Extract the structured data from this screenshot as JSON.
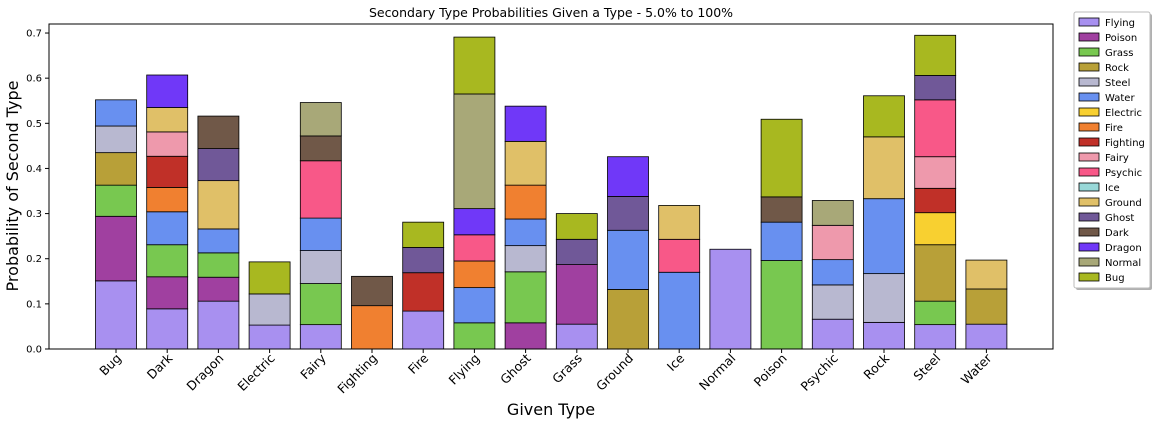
{
  "chart_data": {
    "type": "bar",
    "stacked": true,
    "title": "Secondary Type Probabilities Given a Type - 5.0% to 100%",
    "xlabel": "Given Type",
    "ylabel": "Probability of Second Type",
    "ylim": [
      0,
      0.72
    ],
    "yticks": [
      "0.0",
      "0.1",
      "0.2",
      "0.3",
      "0.4",
      "0.5",
      "0.6",
      "0.7"
    ],
    "legend_position": "outside-right-top",
    "grid": false,
    "categories": [
      "Bug",
      "Dark",
      "Dragon",
      "Electric",
      "Fairy",
      "Fighting",
      "Fire",
      "Flying",
      "Ghost",
      "Grass",
      "Ground",
      "Ice",
      "Normal",
      "Poison",
      "Psychic",
      "Rock",
      "Steel",
      "Water"
    ],
    "series": [
      {
        "name": "Flying",
        "color": "#a890f0",
        "values": [
          0.151,
          0.089,
          0.106,
          0.053,
          0.054,
          0,
          0.084,
          0,
          0,
          0.055,
          0,
          0,
          0.221,
          0,
          0.066,
          0.059,
          0.054,
          0.055
        ]
      },
      {
        "name": "Poison",
        "color": "#a040a0",
        "values": [
          0.143,
          0.071,
          0.053,
          0,
          0,
          0,
          0,
          0,
          0.058,
          0.132,
          0,
          0,
          0,
          0,
          0,
          0,
          0,
          0
        ]
      },
      {
        "name": "Grass",
        "color": "#78c850",
        "values": [
          0.069,
          0.071,
          0.054,
          0,
          0.091,
          0,
          0,
          0.058,
          0.113,
          0,
          0,
          0,
          0,
          0.196,
          0,
          0,
          0.052,
          0
        ]
      },
      {
        "name": "Rock",
        "color": "#b8a038",
        "values": [
          0.072,
          0,
          0,
          0,
          0,
          0,
          0,
          0,
          0,
          0,
          0.132,
          0,
          0,
          0,
          0,
          0,
          0.125,
          0.078
        ]
      },
      {
        "name": "Steel",
        "color": "#b8b8d0",
        "values": [
          0.059,
          0,
          0,
          0.069,
          0.073,
          0,
          0,
          0,
          0.058,
          0,
          0,
          0,
          0,
          0,
          0.076,
          0.108,
          0,
          0
        ]
      },
      {
        "name": "Water",
        "color": "#6890f0",
        "values": [
          0.058,
          0.073,
          0.053,
          0,
          0.072,
          0,
          0,
          0.078,
          0.059,
          0,
          0.131,
          0.17,
          0,
          0.085,
          0.056,
          0.166,
          0,
          0
        ]
      },
      {
        "name": "Electric",
        "color": "#f8d030",
        "values": [
          0,
          0,
          0,
          0,
          0,
          0,
          0,
          0,
          0,
          0,
          0,
          0,
          0,
          0,
          0,
          0,
          0.071,
          0
        ]
      },
      {
        "name": "Fire",
        "color": "#f08030",
        "values": [
          0,
          0.054,
          0,
          0,
          0,
          0.096,
          0,
          0.059,
          0.075,
          0,
          0,
          0,
          0,
          0,
          0,
          0,
          0,
          0
        ]
      },
      {
        "name": "Fighting",
        "color": "#c03028",
        "values": [
          0,
          0.069,
          0,
          0,
          0,
          0,
          0.085,
          0,
          0,
          0,
          0,
          0,
          0,
          0,
          0,
          0,
          0.054,
          0
        ]
      },
      {
        "name": "Fairy",
        "color": "#ee99ac",
        "values": [
          0,
          0.054,
          0,
          0,
          0,
          0,
          0,
          0,
          0,
          0,
          0,
          0,
          0,
          0,
          0.076,
          0,
          0.07,
          0
        ]
      },
      {
        "name": "Psychic",
        "color": "#f85888",
        "values": [
          0,
          0,
          0,
          0,
          0.127,
          0,
          0,
          0.058,
          0,
          0,
          0,
          0.073,
          0,
          0,
          0,
          0,
          0.126,
          0
        ]
      },
      {
        "name": "Ice",
        "color": "#98d8d8",
        "values": [
          0,
          0,
          0,
          0,
          0,
          0,
          0,
          0,
          0,
          0,
          0,
          0,
          0,
          0,
          0,
          0,
          0,
          0
        ]
      },
      {
        "name": "Ground",
        "color": "#e0c068",
        "values": [
          0,
          0.054,
          0.107,
          0,
          0,
          0,
          0,
          0,
          0.097,
          0,
          0,
          0.075,
          0,
          0,
          0,
          0.137,
          0,
          0.064
        ]
      },
      {
        "name": "Ghost",
        "color": "#705898",
        "values": [
          0,
          0,
          0.071,
          0,
          0,
          0,
          0.056,
          0,
          0,
          0.056,
          0.075,
          0,
          0,
          0,
          0,
          0,
          0.054,
          0
        ]
      },
      {
        "name": "Dark",
        "color": "#705848",
        "values": [
          0,
          0,
          0.072,
          0,
          0.055,
          0.065,
          0,
          0,
          0,
          0,
          0,
          0,
          0,
          0.056,
          0,
          0,
          0,
          0
        ]
      },
      {
        "name": "Dragon",
        "color": "#7038f8",
        "values": [
          0,
          0.072,
          0,
          0,
          0,
          0,
          0,
          0.058,
          0.078,
          0,
          0.088,
          0,
          0,
          0,
          0,
          0,
          0,
          0
        ]
      },
      {
        "name": "Normal",
        "color": "#a8a878",
        "values": [
          0,
          0,
          0,
          0,
          0.074,
          0,
          0,
          0.254,
          0,
          0,
          0,
          0,
          0,
          0,
          0.055,
          0,
          0,
          0
        ]
      },
      {
        "name": "Bug",
        "color": "#a8b820",
        "values": [
          0,
          0,
          0,
          0.071,
          0,
          0,
          0.056,
          0.126,
          0,
          0.057,
          0,
          0,
          0,
          0.172,
          0,
          0.091,
          0.089,
          0
        ]
      }
    ]
  }
}
